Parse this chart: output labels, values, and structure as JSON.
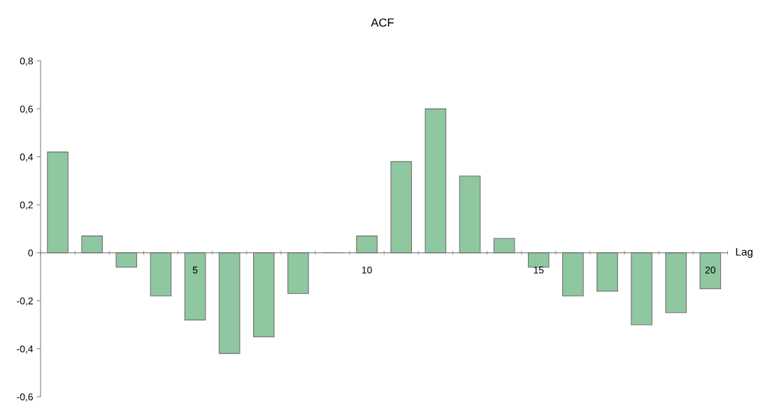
{
  "chart_data": {
    "type": "bar",
    "title": "ACF",
    "xlabel": "Lag",
    "categories": [
      null,
      null,
      null,
      null,
      "5",
      null,
      null,
      null,
      null,
      "10",
      null,
      null,
      null,
      null,
      "15",
      null,
      null,
      null,
      null,
      "20"
    ],
    "values": [
      0.42,
      0.07,
      -0.06,
      -0.18,
      -0.28,
      -0.42,
      -0.35,
      -0.17,
      0,
      0.07,
      0.38,
      0.6,
      0.32,
      0.06,
      -0.06,
      -0.18,
      -0.16,
      -0.3,
      -0.25,
      -0.15
    ],
    "color": "#8fc7a0",
    "ylim": [
      -0.6,
      0.8
    ],
    "yticks": [
      {
        "value": -0.6,
        "label": "-0,6"
      },
      {
        "value": -0.4,
        "label": "-0,4"
      },
      {
        "value": -0.2,
        "label": "-0,2"
      },
      {
        "value": 0,
        "label": "0"
      },
      {
        "value": 0.2,
        "label": "0,2"
      },
      {
        "value": 0.4,
        "label": "0,4"
      },
      {
        "value": 0.6,
        "label": "0,6"
      },
      {
        "value": 0.8,
        "label": "0,8"
      }
    ],
    "grid": false
  }
}
